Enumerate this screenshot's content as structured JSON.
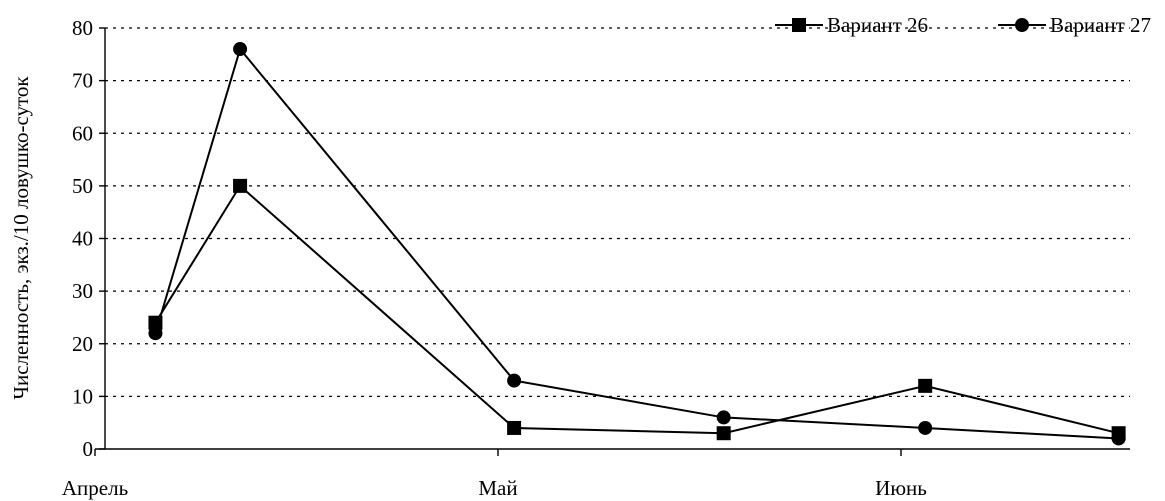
{
  "chart_data": {
    "type": "line",
    "ylabel": "Численность, экз./10 ловушко-суток",
    "ylim": [
      0,
      80
    ],
    "yticks": [
      0,
      10,
      20,
      30,
      40,
      50,
      60,
      70,
      80
    ],
    "x_range": [
      0,
      3
    ],
    "x_tick_labels": [
      {
        "label": "Апрель",
        "x": 0
      },
      {
        "label": "Май",
        "x": 1
      },
      {
        "label": "Июнь",
        "x": 2
      }
    ],
    "grid": true,
    "legend_position": "top-right",
    "series": [
      {
        "name": "Вариант 26",
        "marker": "square",
        "x": [
          0.15,
          0.36,
          1.04,
          1.56,
          2.06,
          2.54
        ],
        "values": [
          24,
          50,
          4,
          3,
          12,
          3
        ]
      },
      {
        "name": "Вариант 27",
        "marker": "circle",
        "x": [
          0.15,
          0.36,
          1.04,
          1.56,
          2.06,
          2.54
        ],
        "values": [
          22,
          76,
          13,
          6,
          4,
          2
        ]
      }
    ]
  }
}
